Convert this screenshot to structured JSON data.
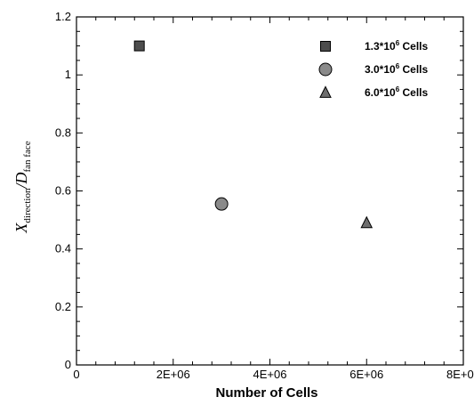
{
  "chart_data": {
    "type": "scatter",
    "xlabel": "Number of Cells",
    "ylabel": {
      "prefix": "X",
      "prefix_sub": "direction",
      "separator": "/",
      "suffix": "D",
      "suffix_sub": "fan face"
    },
    "xlim": [
      0,
      8000000
    ],
    "ylim": [
      0,
      1.2
    ],
    "x_ticks": [
      {
        "value": 0,
        "label": "0"
      },
      {
        "value": 2000000,
        "label": "2E+06"
      },
      {
        "value": 4000000,
        "label": "4E+06"
      },
      {
        "value": 6000000,
        "label": "6E+06"
      },
      {
        "value": 8000000,
        "label": "8E+06"
      }
    ],
    "y_ticks": [
      {
        "value": 0,
        "label": "0"
      },
      {
        "value": 0.2,
        "label": "0.2"
      },
      {
        "value": 0.4,
        "label": "0.4"
      },
      {
        "value": 0.6,
        "label": "0.6"
      },
      {
        "value": 0.8,
        "label": "0.8"
      },
      {
        "value": 1.0,
        "label": "1"
      },
      {
        "value": 1.2,
        "label": "1.2"
      }
    ],
    "grid": false,
    "legend_position": "top-right",
    "series": [
      {
        "name": "1.3*10^6 Cells",
        "name_base": "1.3*10",
        "name_exp": "6",
        "name_tail": " Cells",
        "marker": "square",
        "color": "#4d4d4d",
        "x": [
          1300000
        ],
        "y": [
          1.1
        ]
      },
      {
        "name": "3.0*10^6 Cells",
        "name_base": "3.0*10",
        "name_exp": "6",
        "name_tail": " Cells",
        "marker": "circle",
        "color": "#8a8a8a",
        "x": [
          3000000
        ],
        "y": [
          0.555
        ]
      },
      {
        "name": "6.0*10^6 Cells",
        "name_base": "6.0*10",
        "name_exp": "6",
        "name_tail": " Cells",
        "marker": "triangle",
        "color": "#6e6e6e",
        "x": [
          6000000
        ],
        "y": [
          0.49
        ]
      }
    ]
  }
}
